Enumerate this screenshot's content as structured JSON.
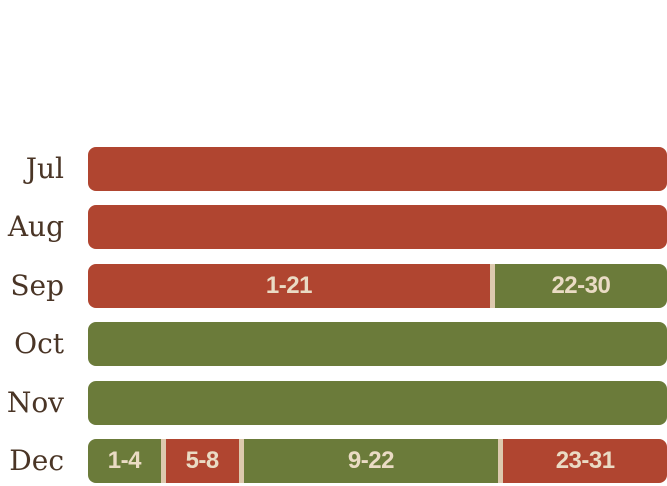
{
  "colors": {
    "red": "#b04530",
    "green": "#6b7b3a",
    "divider": "#ddc9ae",
    "label_text": "#eadbc4",
    "month_text": "#4a3526"
  },
  "months": [
    {
      "name": "Jul",
      "segments": [
        {
          "label": "",
          "days": 31,
          "color": "red"
        }
      ]
    },
    {
      "name": "Aug",
      "segments": [
        {
          "label": "",
          "days": 31,
          "color": "red"
        }
      ]
    },
    {
      "name": "Sep",
      "segments": [
        {
          "label": "1-21",
          "days": 21,
          "color": "red"
        },
        {
          "label": "22-30",
          "days": 9,
          "color": "green"
        }
      ]
    },
    {
      "name": "Oct",
      "segments": [
        {
          "label": "",
          "days": 31,
          "color": "green"
        }
      ]
    },
    {
      "name": "Nov",
      "segments": [
        {
          "label": "",
          "days": 30,
          "color": "green"
        }
      ]
    },
    {
      "name": "Dec",
      "segments": [
        {
          "label": "1-4",
          "days": 4,
          "color": "green"
        },
        {
          "label": "5-8",
          "days": 4,
          "color": "red"
        },
        {
          "label": "9-22",
          "days": 14,
          "color": "green"
        },
        {
          "label": "23-31",
          "days": 9,
          "color": "red"
        }
      ]
    }
  ]
}
